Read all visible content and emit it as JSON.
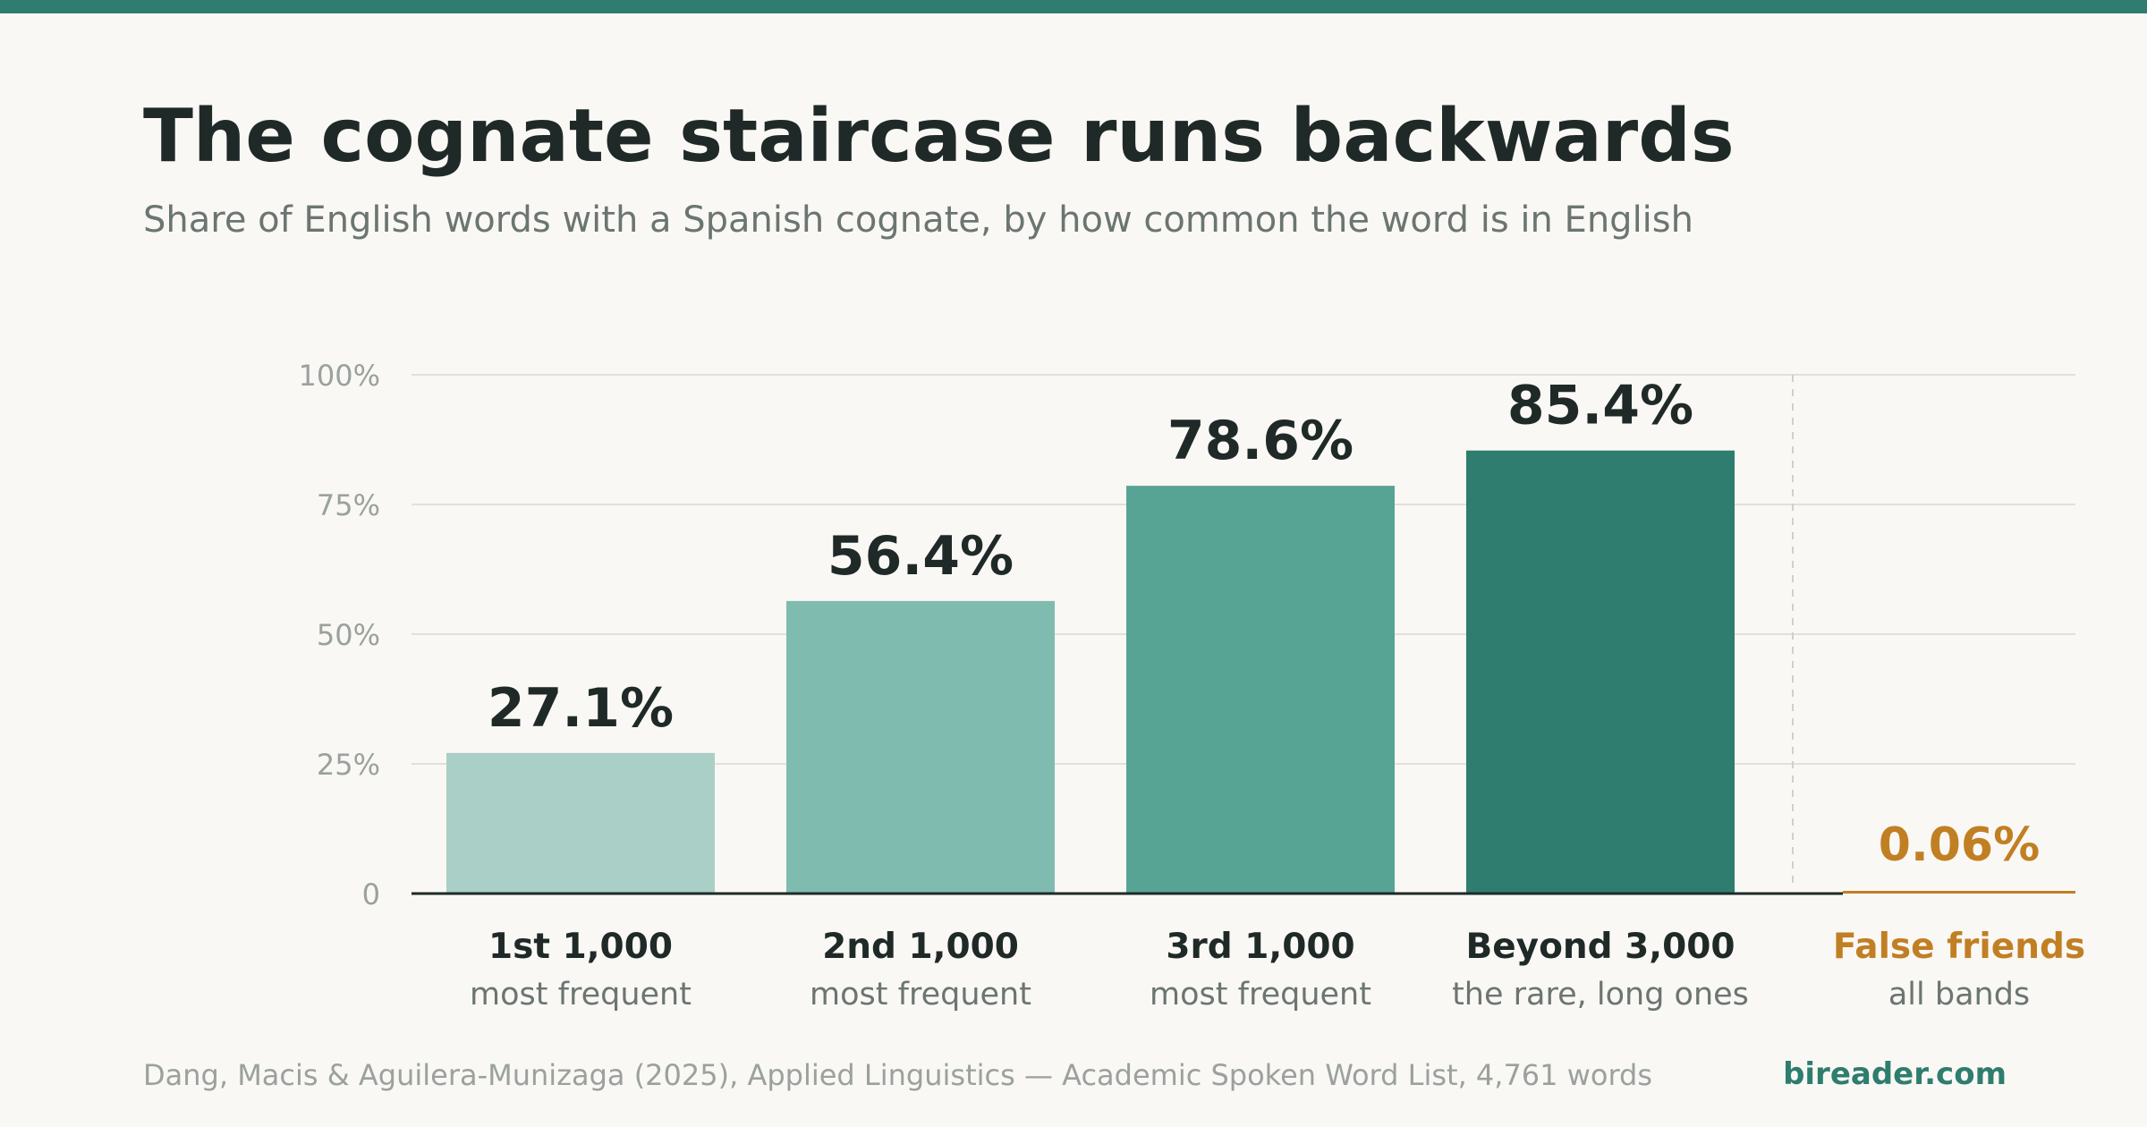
{
  "title": "The cognate staircase runs backwards",
  "subtitle": "Share of English words with a Spanish cognate, by how common the word is in English",
  "footer": {
    "source": "Dang, Macis & Aguilera-Munizaga (2025), Applied Linguistics — Academic Spoken Word List, 4,761 words",
    "brand": "bireader.com"
  },
  "colors": {
    "accent": "#2e7d6e",
    "false_friends": "#c17f24",
    "value_text": "#1f2a28",
    "grid": "#e2e0da",
    "axis": "#1f2a28"
  },
  "chart_data": {
    "type": "bar",
    "title": "",
    "xlabel": "",
    "ylabel": "",
    "ylim": [
      0,
      100
    ],
    "y_ticks": [
      0,
      25,
      50,
      75,
      100
    ],
    "y_tick_labels": [
      "0",
      "25%",
      "50%",
      "75%",
      "100%"
    ],
    "grid": true,
    "categories": [
      {
        "label": "1st 1,000",
        "sublabel": "most frequent",
        "value": 27.1,
        "value_label": "27.1%",
        "color": "#aacfc6"
      },
      {
        "label": "2nd 1,000",
        "sublabel": "most frequent",
        "value": 56.4,
        "value_label": "56.4%",
        "color": "#80bbb0"
      },
      {
        "label": "3rd 1,000",
        "sublabel": "most frequent",
        "value": 78.6,
        "value_label": "78.6%",
        "color": "#57a495"
      },
      {
        "label": "Beyond 3,000",
        "sublabel": "the rare, long ones",
        "value": 85.4,
        "value_label": "85.4%",
        "color": "#2e7d6e"
      }
    ],
    "highlight": {
      "label": "False friends",
      "sublabel": "all bands",
      "value": 0.06,
      "value_label": "0.06%",
      "color": "#c17f24"
    }
  }
}
